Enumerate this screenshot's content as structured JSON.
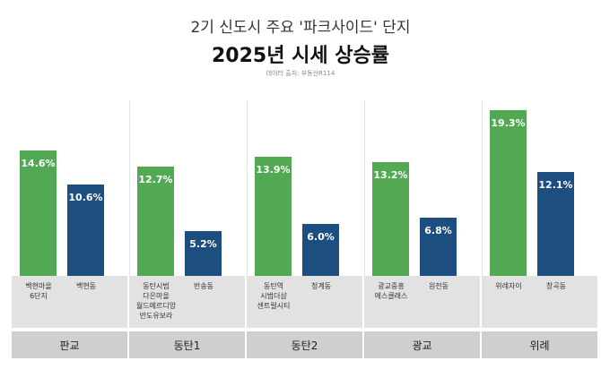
{
  "chart_data": {
    "type": "bar",
    "title": "2기 신도시 주요 '파크사이드' 단지",
    "subtitle": "2025년 시세 상승률",
    "source": "데이터 출처: 부동산R114",
    "colors": [
      "#52a853",
      "#1d4e80"
    ],
    "groups": [
      {
        "name": "판교",
        "categories": [
          "백현마을\n6단지",
          "백현동"
        ],
        "values": [
          14.6,
          10.6
        ],
        "value_labels": [
          "14.6%",
          "10.6%"
        ]
      },
      {
        "name": "동탄1",
        "categories": [
          "동탄시범\n다은마을\n월드메르디앙\n반도유보라",
          "반송동"
        ],
        "values": [
          12.7,
          5.2
        ],
        "value_labels": [
          "12.7%",
          "5.2%"
        ]
      },
      {
        "name": "동탄2",
        "categories": [
          "동탄역\n시범더샵\n센트럴시티",
          "청계동"
        ],
        "values": [
          13.9,
          6.0
        ],
        "value_labels": [
          "13.9%",
          "6.0%"
        ]
      },
      {
        "name": "광교",
        "categories": [
          "광교중흥\n에스클래스",
          "원천동"
        ],
        "values": [
          13.2,
          6.8
        ],
        "value_labels": [
          "13.2%",
          "6.8%"
        ]
      },
      {
        "name": "위례",
        "categories": [
          "위례자이",
          "창곡동"
        ],
        "values": [
          19.3,
          12.1
        ],
        "value_labels": [
          "19.3%",
          "12.1%"
        ]
      }
    ]
  }
}
